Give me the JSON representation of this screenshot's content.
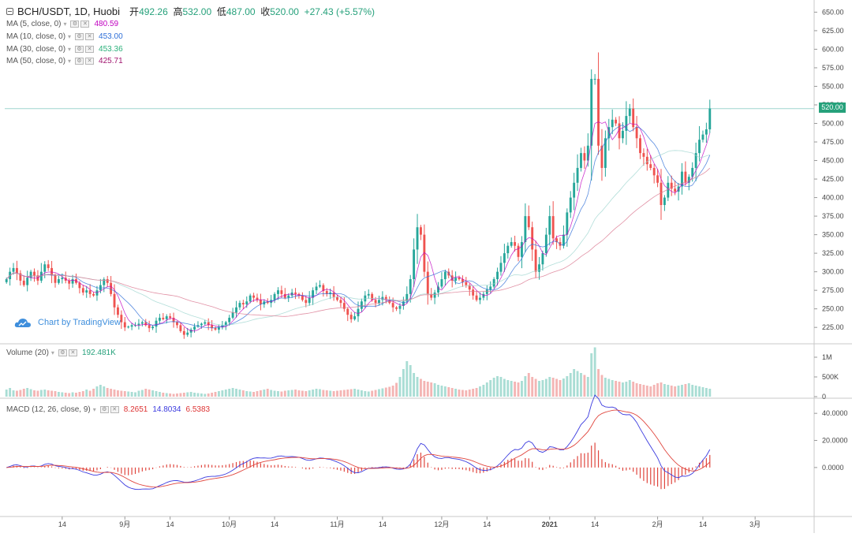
{
  "header": {
    "symbol": "BCH/USDT, 1D, Huobi",
    "open_label": "开",
    "open": "492.26",
    "high_label": "高",
    "high": "532.00",
    "low_label": "低",
    "low": "487.00",
    "close_label": "收",
    "close": "520.00",
    "change": "+27.43 (+5.57%)"
  },
  "indicators": [
    {
      "label": "MA (5, close, 0)",
      "value": "480.59",
      "color": "#c000c0"
    },
    {
      "label": "MA (10, close, 0)",
      "value": "453.00",
      "color": "#2f6fd8"
    },
    {
      "label": "MA (30, close, 0)",
      "value": "453.36",
      "color": "#2ab07a"
    },
    {
      "label": "MA (50, close, 0)",
      "value": "425.71",
      "color": "#a0146e"
    }
  ],
  "volume_legend": {
    "label": "Volume (20)",
    "value": "192.481K"
  },
  "macd_legend": {
    "label": "MACD (12, 26, close, 9)",
    "hist": "8.2651",
    "macd": "14.8034",
    "signal": "6.5383"
  },
  "watermark": "Chart by TradingView",
  "price_badge": "520.00",
  "colors": {
    "up": "#26a69a",
    "down": "#ef5350",
    "macd": "#3a3adf",
    "signal": "#e0463e",
    "hist": "#e0463e"
  },
  "chart_data": {
    "type": "candlestick",
    "title": "BCH/USDT, 1D, Huobi",
    "price_axis": {
      "ticks": [
        225,
        250,
        275,
        300,
        325,
        350,
        375,
        400,
        425,
        450,
        475,
        500,
        525,
        550,
        575,
        600,
        625,
        650
      ]
    },
    "volume_axis": {
      "ticks": [
        "0",
        "500K",
        "1M"
      ]
    },
    "macd_axis": {
      "ticks": [
        "0.0000",
        "20.0000",
        "40.0000"
      ]
    },
    "x_ticks": [
      {
        "label": "14",
        "day": 16
      },
      {
        "label": "9月",
        "day": 34
      },
      {
        "label": "14",
        "day": 47
      },
      {
        "label": "10月",
        "day": 64
      },
      {
        "label": "14",
        "day": 77
      },
      {
        "label": "11月",
        "day": 95
      },
      {
        "label": "14",
        "day": 108
      },
      {
        "label": "12月",
        "day": 125
      },
      {
        "label": "14",
        "day": 138
      },
      {
        "label": "2021",
        "day": 156
      },
      {
        "label": "14",
        "day": 169
      },
      {
        "label": "2月",
        "day": 187
      },
      {
        "label": "14",
        "day": 200
      },
      {
        "label": "3月",
        "day": 215
      }
    ],
    "series": {
      "close": [
        290,
        300,
        305,
        298,
        288,
        282,
        292,
        300,
        295,
        288,
        300,
        310,
        305,
        295,
        285,
        290,
        292,
        288,
        284,
        290,
        285,
        278,
        272,
        275,
        270,
        268,
        275,
        282,
        290,
        285,
        270,
        252,
        242,
        232,
        225,
        226,
        228,
        228,
        230,
        232,
        228,
        224,
        226,
        234,
        238,
        236,
        240,
        238,
        232,
        228,
        220,
        215,
        218,
        222,
        226,
        228,
        230,
        232,
        228,
        224,
        222,
        225,
        228,
        232,
        238,
        245,
        252,
        258,
        256,
        260,
        268,
        265,
        262,
        256,
        260,
        258,
        262,
        270,
        275,
        270,
        265,
        268,
        272,
        270,
        268,
        262,
        258,
        265,
        275,
        280,
        282,
        274,
        270,
        272,
        266,
        262,
        258,
        250,
        242,
        236,
        240,
        250,
        260,
        268,
        270,
        262,
        258,
        262,
        266,
        262,
        258,
        252,
        250,
        254,
        260,
        270,
        290,
        330,
        360,
        350,
        300,
        270,
        265,
        272,
        280,
        290,
        300,
        295,
        288,
        292,
        290,
        286,
        282,
        276,
        268,
        262,
        265,
        270,
        276,
        280,
        290,
        300,
        312,
        325,
        335,
        340,
        335,
        320,
        340,
        375,
        360,
        330,
        300,
        310,
        325,
        350,
        375,
        345,
        340,
        335,
        350,
        380,
        400,
        420,
        440,
        460,
        450,
        470,
        560,
        560,
        470,
        440,
        480,
        495,
        505,
        500,
        480,
        490,
        510,
        520,
        495,
        480,
        460,
        455,
        445,
        440,
        430,
        420,
        390,
        400,
        420,
        412,
        408,
        415,
        435,
        420,
        428,
        440,
        460,
        478,
        485,
        492,
        520
      ],
      "volume_k": [
        180,
        220,
        160,
        150,
        170,
        200,
        220,
        190,
        160,
        150,
        170,
        180,
        160,
        150,
        140,
        120,
        110,
        100,
        90,
        110,
        100,
        120,
        140,
        180,
        150,
        200,
        260,
        300,
        260,
        220,
        200,
        180,
        160,
        150,
        140,
        130,
        120,
        110,
        150,
        170,
        200,
        180,
        160,
        140,
        120,
        100,
        90,
        80,
        70,
        80,
        90,
        100,
        110,
        120,
        100,
        90,
        80,
        70,
        80,
        100,
        120,
        140,
        160,
        180,
        200,
        220,
        200,
        180,
        160,
        140,
        130,
        120,
        140,
        160,
        180,
        200,
        170,
        150,
        140,
        130,
        150,
        160,
        170,
        180,
        160,
        150,
        140,
        160,
        180,
        200,
        190,
        170,
        160,
        150,
        140,
        150,
        160,
        170,
        180,
        190,
        200,
        180,
        160,
        140,
        130,
        150,
        170,
        190,
        210,
        230,
        250,
        280,
        350,
        500,
        700,
        900,
        800,
        600,
        500,
        450,
        400,
        380,
        360,
        340,
        300,
        280,
        260,
        240,
        220,
        200,
        180,
        170,
        160,
        180,
        200,
        220,
        260,
        300,
        360,
        420,
        480,
        520,
        500,
        450,
        420,
        400,
        380,
        360,
        400,
        520,
        600,
        500,
        450,
        400,
        420,
        450,
        500,
        480,
        450,
        420,
        460,
        520,
        600,
        700,
        650,
        600,
        550,
        500,
        1100,
        1250,
        700,
        550,
        480,
        450,
        420,
        400,
        380,
        360,
        380,
        420,
        380,
        340,
        320,
        300,
        280,
        260,
        300,
        340,
        360,
        320,
        300,
        280,
        260,
        280,
        300,
        320,
        340,
        300,
        280,
        260,
        240,
        220,
        200,
        190
      ]
    },
    "markers": {
      "last_price": 520,
      "macd_last": 14.8034,
      "signal_last": 6.5383,
      "hist_last": 8.2651
    }
  }
}
